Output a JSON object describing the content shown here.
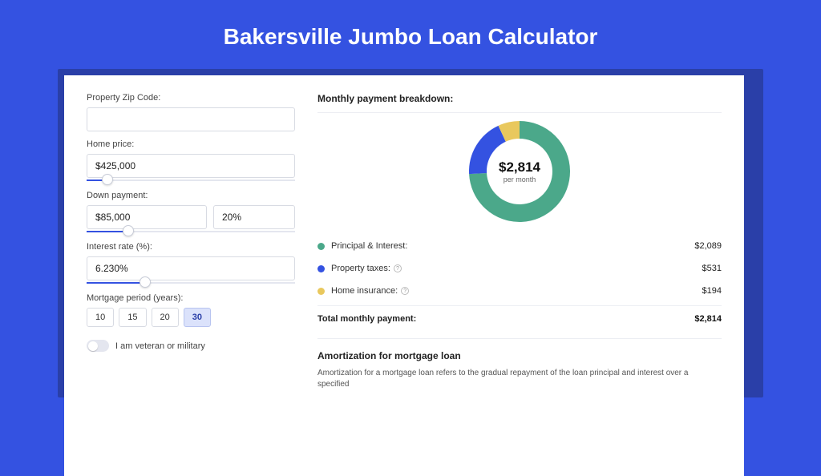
{
  "page": {
    "title": "Bakersville Jumbo Loan Calculator",
    "bg_color": "#3452e1",
    "shadow_color": "#2a3fa8"
  },
  "form": {
    "zip_label": "Property Zip Code:",
    "zip_value": "",
    "home_price_label": "Home price:",
    "home_price_value": "$425,000",
    "home_price_slider_pct": 10,
    "down_payment_label": "Down payment:",
    "down_payment_value": "$85,000",
    "down_payment_pct_value": "20%",
    "down_payment_slider_pct": 20,
    "interest_label": "Interest rate (%):",
    "interest_value": "6.230%",
    "interest_slider_pct": 28,
    "period_label": "Mortgage period (years):",
    "periods": [
      "10",
      "15",
      "20",
      "30"
    ],
    "period_selected": "30",
    "veteran_label": "I am veteran or military",
    "veteran_on": false
  },
  "breakdown": {
    "title": "Monthly payment breakdown:",
    "center_amount": "$2,814",
    "center_sub": "per month",
    "donut": {
      "slices": [
        {
          "label": "Principal & Interest",
          "value": 2089,
          "color": "#4ba88a",
          "pct": 74.2
        },
        {
          "label": "Property taxes",
          "value": 531,
          "color": "#3452e1",
          "pct": 18.9
        },
        {
          "label": "Home insurance",
          "value": 194,
          "color": "#e9c85d",
          "pct": 6.9
        }
      ],
      "stroke_width": 22,
      "radius": 52
    },
    "rows": [
      {
        "dot": "#4ba88a",
        "label": "Principal & Interest:",
        "info": false,
        "value": "$2,089"
      },
      {
        "dot": "#3452e1",
        "label": "Property taxes:",
        "info": true,
        "value": "$531"
      },
      {
        "dot": "#e9c85d",
        "label": "Home insurance:",
        "info": true,
        "value": "$194"
      }
    ],
    "total_label": "Total monthly payment:",
    "total_value": "$2,814"
  },
  "amortization": {
    "title": "Amortization for mortgage loan",
    "text": "Amortization for a mortgage loan refers to the gradual repayment of the loan principal and interest over a specified"
  }
}
